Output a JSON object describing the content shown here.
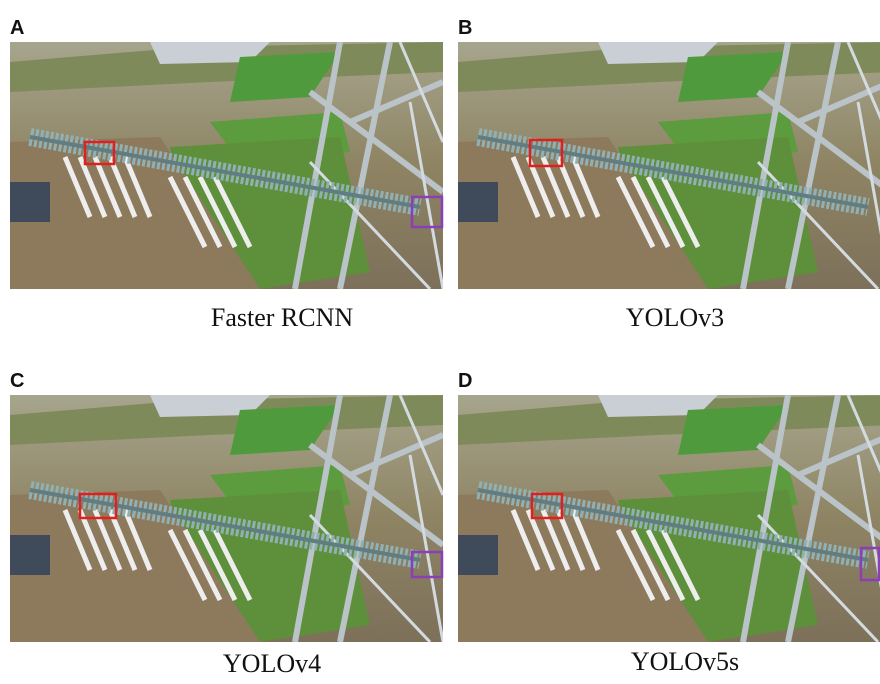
{
  "panels": [
    {
      "label": "A",
      "caption": "Faster RCNN"
    },
    {
      "label": "B",
      "caption": "YOLOv3"
    },
    {
      "label": "C",
      "caption": "YOLOv4"
    },
    {
      "label": "D",
      "caption": "YOLOv5s"
    }
  ]
}
